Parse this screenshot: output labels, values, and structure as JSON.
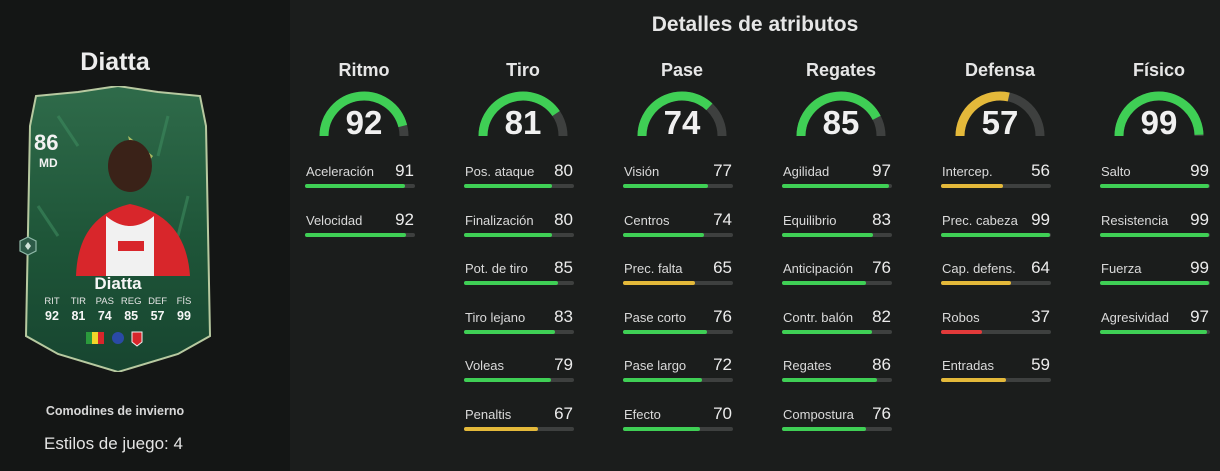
{
  "player": {
    "name": "Diatta",
    "rating": "86",
    "position": "MD",
    "card_name": "Diatta",
    "card_stats": [
      {
        "abbr": "RIT",
        "value": "92"
      },
      {
        "abbr": "TIR",
        "value": "81"
      },
      {
        "abbr": "PAS",
        "value": "74"
      },
      {
        "abbr": "REG",
        "value": "85"
      },
      {
        "abbr": "DEF",
        "value": "57"
      },
      {
        "abbr": "FÍS",
        "value": "99"
      }
    ],
    "promo": "Comodines de invierno",
    "playstyles": "Estilos de juego: 4"
  },
  "colors": {
    "green": "#3fcf55",
    "yellow": "#e4b93a",
    "red": "#e23a3a",
    "track": "#3e403f"
  },
  "panel": {
    "title": "Detalles de atributos",
    "categories": [
      {
        "name": "Ritmo",
        "value": 92,
        "attrs": [
          {
            "label": "Aceleración",
            "value": 91
          },
          {
            "label": "Velocidad",
            "value": 92
          }
        ]
      },
      {
        "name": "Tiro",
        "value": 81,
        "attrs": [
          {
            "label": "Pos. ataque",
            "value": 80
          },
          {
            "label": "Finalización",
            "value": 80
          },
          {
            "label": "Pot. de tiro",
            "value": 85
          },
          {
            "label": "Tiro lejano",
            "value": 83
          },
          {
            "label": "Voleas",
            "value": 79
          },
          {
            "label": "Penaltis",
            "value": 67
          }
        ]
      },
      {
        "name": "Pase",
        "value": 74,
        "attrs": [
          {
            "label": "Visión",
            "value": 77
          },
          {
            "label": "Centros",
            "value": 74
          },
          {
            "label": "Prec. falta",
            "value": 65
          },
          {
            "label": "Pase corto",
            "value": 76
          },
          {
            "label": "Pase largo",
            "value": 72
          },
          {
            "label": "Efecto",
            "value": 70
          }
        ]
      },
      {
        "name": "Regates",
        "value": 85,
        "attrs": [
          {
            "label": "Agilidad",
            "value": 97
          },
          {
            "label": "Equilibrio",
            "value": 83
          },
          {
            "label": "Anticipación",
            "value": 76
          },
          {
            "label": "Contr. balón",
            "value": 82
          },
          {
            "label": "Regates",
            "value": 86
          },
          {
            "label": "Compostura",
            "value": 76
          }
        ]
      },
      {
        "name": "Defensa",
        "value": 57,
        "attrs": [
          {
            "label": "Intercep.",
            "value": 56
          },
          {
            "label": "Prec. cabeza",
            "value": 99
          },
          {
            "label": "Cap. defens.",
            "value": 64
          },
          {
            "label": "Robos",
            "value": 37
          },
          {
            "label": "Entradas",
            "value": 59
          }
        ]
      },
      {
        "name": "Físico",
        "value": 99,
        "attrs": [
          {
            "label": "Salto",
            "value": 99
          },
          {
            "label": "Resistencia",
            "value": 99
          },
          {
            "label": "Fuerza",
            "value": 99
          },
          {
            "label": "Agresividad",
            "value": 97
          }
        ]
      }
    ]
  }
}
